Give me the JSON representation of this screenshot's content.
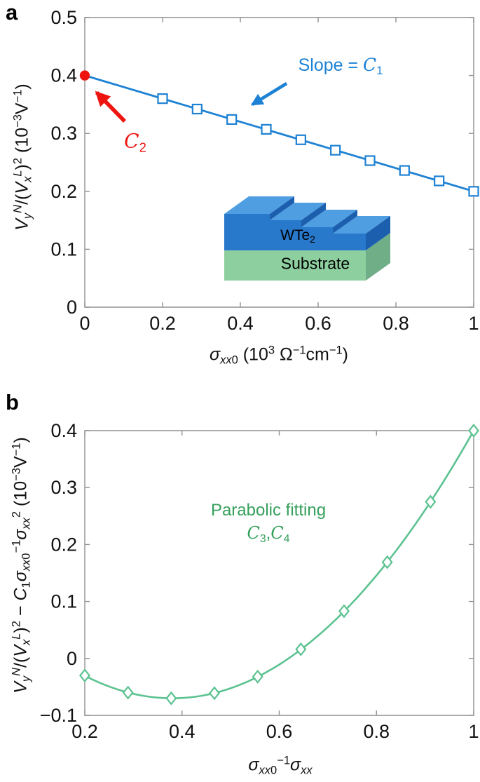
{
  "figure": {
    "background": "#ffffff",
    "panel_a": {
      "label": "a",
      "xlabel": "i{σ}_{i{xx}0} (10^{3} Ω^{−1}cm^{−1})",
      "ylabel": "i{V}_{i{y}}^{i{N}}/(i{V}_{i{x}}^{i{L}})^{2} (10^{−3}V^{−1})",
      "annotations": {
        "slope_label": "Slope = *{C}_{1}",
        "intercept_label": "*{C}_{2}"
      },
      "inset": {
        "layer_label": "WTe_{2}",
        "substrate_label": "Substrate",
        "colors": {
          "layer_top": "#4e9ee1",
          "layer_front": "#2878cc",
          "layer_side": "#1b5fae",
          "substrate_front": "#8ecfa0",
          "substrate_side": "#6fae87"
        }
      },
      "colors": {
        "line": "#1e82d4",
        "marker_fill": "#ffffff",
        "intercept_point": "#ee1511",
        "annotation_blue": "#1e82d4",
        "annotation_red": "#ee1511",
        "axis": "#909090",
        "tick_text": "#111111"
      }
    },
    "panel_b": {
      "label": "b",
      "xlabel": "i{σ}_{i{xx}0}^{−1}i{σ}_{i{xx}}",
      "ylabel": "i{V}_{i{y}}^{i{N}}/(i{V}_{i{x}}^{i{L}})^{2} − i{C}_{1}i{σ}_{i{xx}0}^{−1}i{σ}_{i{xx}}^{2} (10^{−3}V^{−1})",
      "annotations": {
        "fit_label_line1": "Parabolic fitting",
        "fit_label_line2": "*{C}_{3},*{C}_{4}"
      },
      "colors": {
        "curve": "#5cc290",
        "marker_fill": "#ffffff",
        "annotation_green": "#36a05c",
        "axis": "#909090",
        "tick_text": "#111111"
      }
    }
  },
  "chart_data": [
    {
      "type": "line",
      "panel": "a",
      "title": "",
      "xlabel": "sigma_xx0 (10^3 Ohm^-1 cm^-1)",
      "ylabel": "Vy^N/(Vx^L)^2 (10^-3 V^-1)",
      "x": [
        0.2,
        0.2889,
        0.3778,
        0.4667,
        0.5556,
        0.6444,
        0.7333,
        0.8222,
        0.9111,
        1.0
      ],
      "y": [
        0.36,
        0.342,
        0.324,
        0.307,
        0.289,
        0.271,
        0.253,
        0.236,
        0.218,
        0.2
      ],
      "fit_line": {
        "x": [
          0,
          1
        ],
        "y": [
          0.4,
          0.2
        ],
        "slope": -0.2,
        "intercept": 0.4
      },
      "intercept_point": {
        "x": 0,
        "y": 0.4
      },
      "xlim": [
        0,
        1
      ],
      "ylim": [
        0,
        0.5
      ],
      "xticks": {
        "values": [
          0,
          0.2,
          0.4,
          0.6,
          0.8,
          1
        ],
        "labels": [
          "0",
          "0.2",
          "0.4",
          "0.6",
          "0.8",
          "1"
        ]
      },
      "yticks": {
        "values": [
          0,
          0.1,
          0.2,
          0.3,
          0.4,
          0.5
        ],
        "labels": [
          "0",
          "0.1",
          "0.2",
          "0.3",
          "0.4",
          "0.5"
        ]
      },
      "marker": "square",
      "grid": false,
      "legend": "none"
    },
    {
      "type": "scatter",
      "panel": "b",
      "title": "",
      "xlabel": "sigma_xx0^-1 sigma_xx",
      "ylabel": "Vy^N/(Vx^L)^2 - C1 sigma_xx0^-1 sigma_xx^2 (10^-3 V^-1)",
      "x": [
        0.2,
        0.2889,
        0.3778,
        0.4667,
        0.5556,
        0.6444,
        0.7333,
        0.8222,
        0.9111,
        1.0
      ],
      "y": [
        -0.03,
        -0.06,
        -0.07,
        -0.061,
        -0.032,
        0.016,
        0.083,
        0.169,
        0.275,
        0.4
      ],
      "curve_fit": {
        "form": "a*(x-h)^2+k",
        "a": 1.2228,
        "h": 0.38,
        "k": -0.07
      },
      "xlim": [
        0.2,
        1
      ],
      "ylim": [
        -0.1,
        0.4
      ],
      "xticks": {
        "values": [
          0.2,
          0.4,
          0.6,
          0.8,
          1
        ],
        "labels": [
          "0.2",
          "0.4",
          "0.6",
          "0.8",
          "1"
        ]
      },
      "yticks": {
        "values": [
          -0.1,
          0,
          0.1,
          0.2,
          0.3,
          0.4
        ],
        "labels": [
          "−0.1",
          "0",
          "0.1",
          "0.2",
          "0.3",
          "0.4"
        ]
      },
      "marker": "diamond",
      "grid": false,
      "legend": "none"
    }
  ]
}
